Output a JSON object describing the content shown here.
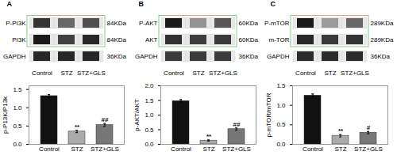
{
  "chart_data": [
    {
      "type": "blot",
      "title": "A",
      "categories": [
        "Control",
        "STZ",
        "STZ+GLS"
      ],
      "color": "#88cc88",
      "series": [
        {
          "name": "P-PI3K",
          "annotation": "84KDa",
          "values": [
            0.7,
            0.5,
            0.6
          ]
        },
        {
          "name": "PI3K",
          "annotation": "84KDa",
          "values": [
            0.8,
            0.65,
            0.75
          ]
        },
        {
          "name": "GAPDH",
          "annotation": "36KDa",
          "values": [
            0.75,
            0.75,
            0.75
          ]
        }
      ]
    },
    {
      "type": "blot",
      "title": "B",
      "categories": [
        "Control",
        "STZ",
        "STZ+GLS"
      ],
      "color": "#88cc88",
      "series": [
        {
          "name": "P-AKT",
          "annotation": "60KDa",
          "values": [
            0.85,
            0.35,
            0.6
          ]
        },
        {
          "name": "AKT",
          "annotation": "60KDa",
          "values": [
            0.75,
            0.7,
            0.72
          ]
        },
        {
          "name": "GAPDH",
          "annotation": "36KDa",
          "values": [
            0.72,
            0.72,
            0.72
          ]
        }
      ]
    },
    {
      "type": "blot",
      "title": "C",
      "categories": [
        "Control",
        "STZ",
        "STZ+GLS"
      ],
      "color": "#88cc88",
      "series": [
        {
          "name": "P-mTOR",
          "annotation": "289KDa",
          "values": [
            0.8,
            0.3,
            0.5
          ]
        },
        {
          "name": "m-TOR",
          "annotation": "289KDa",
          "values": [
            0.75,
            0.68,
            0.7
          ]
        },
        {
          "name": "GAPDH",
          "annotation": "36KDa",
          "values": [
            0.73,
            0.73,
            0.73
          ]
        }
      ]
    },
    {
      "type": "bar",
      "categories": [
        "Control",
        "STZ",
        "STZ+GLS"
      ],
      "values": [
        1.32,
        0.35,
        0.53
      ],
      "errors": [
        0.04,
        0.03,
        0.04
      ],
      "colors": [
        "#111111",
        "#aaaaaa",
        "#777777"
      ],
      "ylabel": "p-P13K/P13k",
      "ylim": [
        0.0,
        1.6
      ],
      "yticks": [
        {
          "value": 0.0,
          "label": "0.0"
        },
        0.5,
        {
          "value": 1.0,
          "label": "1.0"
        },
        1.5
      ],
      "annotations": [
        {
          "category": "STZ",
          "text": "**"
        },
        {
          "category": "STZ+GLS",
          "text": "##"
        }
      ]
    },
    {
      "type": "bar",
      "categories": [
        "Control",
        "STZ",
        "STZ+GLS"
      ],
      "values": [
        1.48,
        0.13,
        0.52
      ],
      "errors": [
        0.05,
        0.02,
        0.04
      ],
      "colors": [
        "#111111",
        "#aaaaaa",
        "#777777"
      ],
      "ylabel": "p-AKT/AKT",
      "ylim": [
        0.0,
        2.0
      ],
      "yticks": [
        {
          "value": 0.0,
          "label": "0.0"
        },
        0.5,
        {
          "value": 1.0,
          "label": "1.0"
        },
        1.5,
        {
          "value": 2.0,
          "label": "2.0"
        }
      ],
      "annotations": [
        {
          "category": "STZ",
          "text": "**"
        },
        {
          "category": "STZ+GLS",
          "text": "##"
        }
      ]
    },
    {
      "type": "bar",
      "categories": [
        "Control",
        "STZ",
        "STZ+GLS"
      ],
      "values": [
        1.25,
        0.22,
        0.3
      ],
      "errors": [
        0.04,
        0.03,
        0.03
      ],
      "colors": [
        "#111111",
        "#aaaaaa",
        "#777777"
      ],
      "ylabel": "p-mTOR/mTOR",
      "ylim": [
        0.0,
        1.5
      ],
      "yticks": [
        {
          "value": 0.0,
          "label": "0.0"
        },
        0.5,
        {
          "value": 1.0,
          "label": "1.0"
        },
        1.5
      ],
      "annotations": [
        {
          "category": "STZ",
          "text": "**"
        },
        {
          "category": "STZ+GLS",
          "text": "#"
        }
      ]
    }
  ]
}
